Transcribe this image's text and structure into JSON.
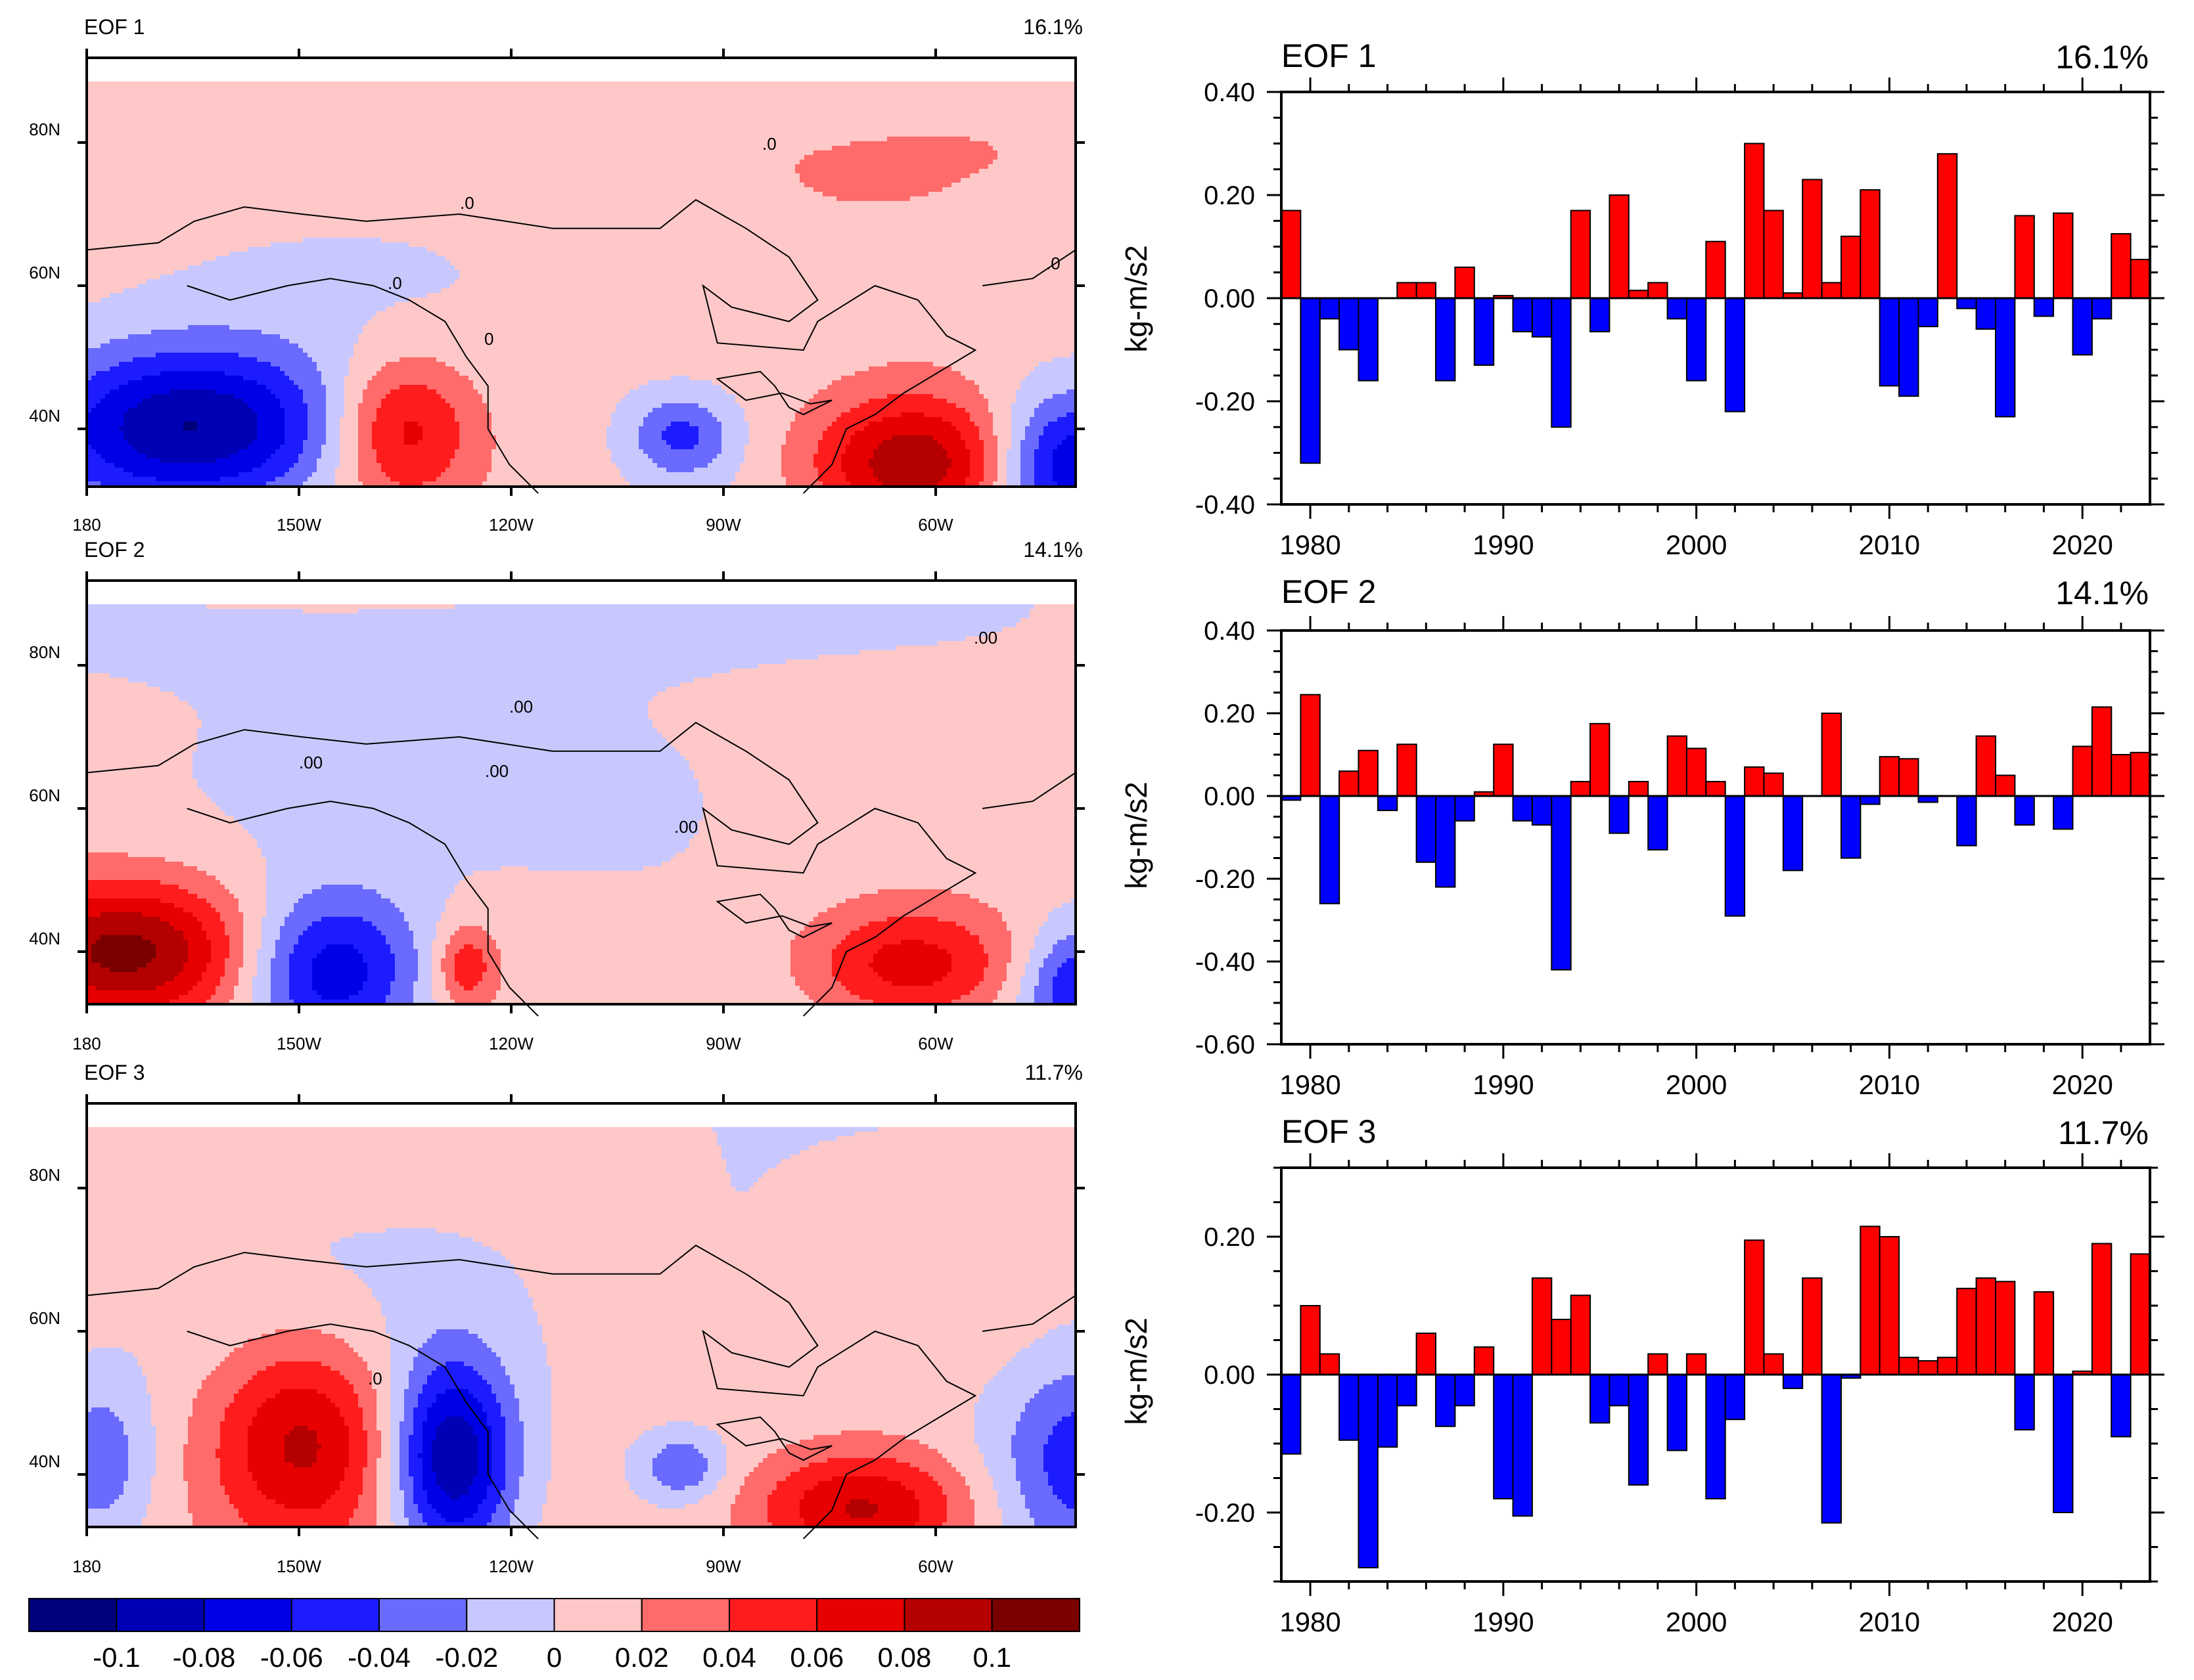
{
  "maps": [
    {
      "title": "EOF 1",
      "variance": "16.1%",
      "lat_ticks": [
        "80N",
        "60N",
        "40N"
      ],
      "lon_ticks": [
        "180",
        "150W",
        "120W",
        "90W",
        "60W"
      ],
      "contour_labels": [
        ".0",
        ".0",
        ".0",
        "0",
        ".0"
      ],
      "blobs": [
        {
          "lon": -165,
          "lat": 40,
          "sx": 15,
          "sy": 8,
          "amp": -0.11
        },
        {
          "lon": -136,
          "lat": 40,
          "sx": 7,
          "sy": 7,
          "amp": 0.065
        },
        {
          "lon": -97,
          "lat": 39,
          "sx": 5,
          "sy": 4,
          "amp": -0.05
        },
        {
          "lon": -64,
          "lat": 35,
          "sx": 11,
          "sy": 7,
          "amp": 0.1
        },
        {
          "lon": -43,
          "lat": 35,
          "sx": 8,
          "sy": 7,
          "amp": -0.09
        },
        {
          "lon": -152,
          "lat": 80,
          "sx": 45,
          "sy": 9,
          "amp": 0.012
        },
        {
          "lon": -55,
          "lat": 82,
          "sx": 30,
          "sy": 8,
          "amp": 0.012
        }
      ]
    },
    {
      "title": "EOF 2",
      "variance": "14.1%",
      "lat_ticks": [
        "80N",
        "60N",
        "40N"
      ],
      "lon_ticks": [
        "180",
        "150W",
        "120W",
        "90W",
        "60W"
      ],
      "contour_labels": [
        ".00",
        ".00",
        ".00",
        ".00",
        ".00"
      ],
      "blobs": [
        {
          "lon": -175,
          "lat": 40,
          "sx": 13,
          "sy": 7,
          "amp": 0.1
        },
        {
          "lon": -146,
          "lat": 37,
          "sx": 9,
          "sy": 8,
          "amp": -0.09
        },
        {
          "lon": -127,
          "lat": 38,
          "sx": 3,
          "sy": 4,
          "amp": 0.05
        },
        {
          "lon": -65,
          "lat": 38,
          "sx": 11,
          "sy": 6,
          "amp": 0.07
        },
        {
          "lon": -41,
          "lat": 35,
          "sx": 6,
          "sy": 6,
          "amp": -0.07
        },
        {
          "lon": -140,
          "lat": 85,
          "sx": 60,
          "sy": 6,
          "amp": -0.012
        },
        {
          "lon": -100,
          "lat": 62,
          "sx": 18,
          "sy": 10,
          "amp": -0.012
        }
      ]
    },
    {
      "title": "EOF 3",
      "variance": "11.7%",
      "lat_ticks": [
        "80N",
        "60N",
        "40N"
      ],
      "lon_ticks": [
        "180",
        "150W",
        "120W",
        "90W",
        "60W"
      ],
      "contour_labels": [
        ".0"
      ],
      "blobs": [
        {
          "lon": -150,
          "lat": 45,
          "sx": 9,
          "sy": 10,
          "amp": 0.075
        },
        {
          "lon": -129,
          "lat": 42,
          "sx": 6,
          "sy": 10,
          "amp": -0.11
        },
        {
          "lon": -97,
          "lat": 41,
          "sx": 4,
          "sy": 3,
          "amp": -0.045
        },
        {
          "lon": -72,
          "lat": 35,
          "sx": 11,
          "sy": 6,
          "amp": 0.085
        },
        {
          "lon": -40,
          "lat": 42,
          "sx": 9,
          "sy": 10,
          "amp": -0.06
        },
        {
          "lon": -178,
          "lat": 42,
          "sx": 5,
          "sy": 8,
          "amp": -0.04
        },
        {
          "lon": -88,
          "lat": 68,
          "sx": 10,
          "sy": 12,
          "amp": -0.012
        }
      ]
    }
  ],
  "colorbar": {
    "colors": [
      "#00007a",
      "#0000b4",
      "#0000e6",
      "#1c1cff",
      "#6a6aff",
      "#c8c8ff",
      "#ffc8c8",
      "#ff6a6a",
      "#ff1c1c",
      "#e60000",
      "#b40000",
      "#7a0000"
    ],
    "levels": [
      -0.1,
      -0.08,
      -0.06,
      -0.04,
      -0.02,
      0,
      0.02,
      0.04,
      0.06,
      0.08,
      0.1
    ],
    "labels": [
      "-0.1",
      "-0.08",
      "-0.06",
      "-0.04",
      "-0.02",
      "0",
      "0.02",
      "0.04",
      "0.06",
      "0.08",
      "0.1"
    ]
  },
  "chart_data": [
    {
      "type": "bar",
      "title": "EOF 1",
      "variance": "16.1%",
      "ylabel": "kg-m/s2",
      "ylim": [
        -0.4,
        0.4
      ],
      "yticks": [
        0.4,
        0.2,
        0.0,
        -0.2,
        -0.4
      ],
      "ytick_labels": [
        "0.40",
        "0.20",
        "0.00",
        "-0.20",
        "-0.40"
      ],
      "xlim": [
        1978.5,
        2023.5
      ],
      "xticks": [
        1980,
        1990,
        2000,
        2010,
        2020
      ],
      "xtick_labels": [
        "1980",
        "1990",
        "2000",
        "2010",
        "2020"
      ],
      "positive_color": "#ff0000",
      "negative_color": "#0000ff",
      "years": [
        1979,
        1980,
        1981,
        1982,
        1983,
        1984,
        1985,
        1986,
        1987,
        1988,
        1989,
        1990,
        1991,
        1992,
        1993,
        1994,
        1995,
        1996,
        1997,
        1998,
        1999,
        2000,
        2001,
        2002,
        2003,
        2004,
        2005,
        2006,
        2007,
        2008,
        2009,
        2010,
        2011,
        2012,
        2013,
        2014,
        2015,
        2016,
        2017,
        2018,
        2019,
        2020,
        2021,
        2022,
        2023
      ],
      "values": [
        0.17,
        -0.32,
        -0.04,
        -0.1,
        -0.16,
        0.0,
        0.03,
        0.03,
        -0.16,
        0.06,
        -0.13,
        0.005,
        -0.065,
        -0.075,
        -0.25,
        0.17,
        -0.065,
        0.2,
        0.015,
        0.03,
        -0.04,
        -0.16,
        0.11,
        -0.22,
        0.3,
        0.17,
        0.01,
        0.23,
        0.03,
        0.12,
        0.21,
        -0.17,
        -0.19,
        -0.055,
        0.28,
        -0.02,
        -0.06,
        -0.23,
        0.16,
        -0.035,
        0.165,
        -0.11,
        -0.04,
        0.125,
        0.075
      ]
    },
    {
      "type": "bar",
      "title": "EOF 2",
      "variance": "14.1%",
      "ylabel": "kg-m/s2",
      "ylim": [
        -0.6,
        0.4
      ],
      "yticks": [
        0.4,
        0.2,
        0.0,
        -0.2,
        -0.4,
        -0.6
      ],
      "ytick_labels": [
        "0.40",
        "0.20",
        "0.00",
        "-0.20",
        "-0.40",
        "-0.60"
      ],
      "xlim": [
        1978.5,
        2023.5
      ],
      "xticks": [
        1980,
        1990,
        2000,
        2010,
        2020
      ],
      "xtick_labels": [
        "1980",
        "1990",
        "2000",
        "2010",
        "2020"
      ],
      "positive_color": "#ff0000",
      "negative_color": "#0000ff",
      "years": [
        1979,
        1980,
        1981,
        1982,
        1983,
        1984,
        1985,
        1986,
        1987,
        1988,
        1989,
        1990,
        1991,
        1992,
        1993,
        1994,
        1995,
        1996,
        1997,
        1998,
        1999,
        2000,
        2001,
        2002,
        2003,
        2004,
        2005,
        2006,
        2007,
        2008,
        2009,
        2010,
        2011,
        2012,
        2013,
        2014,
        2015,
        2016,
        2017,
        2018,
        2019,
        2020,
        2021,
        2022,
        2023
      ],
      "values": [
        -0.01,
        0.245,
        -0.26,
        0.06,
        0.11,
        -0.035,
        0.125,
        -0.16,
        -0.22,
        -0.06,
        0.01,
        0.125,
        -0.06,
        -0.07,
        -0.42,
        0.035,
        0.175,
        -0.09,
        0.035,
        -0.13,
        0.145,
        0.115,
        0.035,
        -0.29,
        0.07,
        0.055,
        -0.18,
        0.0,
        0.2,
        -0.15,
        -0.02,
        0.095,
        0.09,
        -0.015,
        0.0,
        -0.12,
        0.145,
        0.05,
        -0.07,
        0.0,
        -0.08,
        0.12,
        0.215,
        0.1,
        0.105
      ]
    },
    {
      "type": "bar",
      "title": "EOF 3",
      "variance": "11.7%",
      "ylabel": "kg-m/s2",
      "ylim": [
        -0.3,
        0.3
      ],
      "yticks": [
        0.2,
        0.0,
        -0.2
      ],
      "ytick_labels": [
        "0.20",
        "0.00",
        "-0.20"
      ],
      "xlim": [
        1978.5,
        2023.5
      ],
      "xticks": [
        1980,
        1990,
        2000,
        2010,
        2020
      ],
      "xtick_labels": [
        "1980",
        "1990",
        "2000",
        "2010",
        "2020"
      ],
      "positive_color": "#ff0000",
      "negative_color": "#0000ff",
      "years": [
        1979,
        1980,
        1981,
        1982,
        1983,
        1984,
        1985,
        1986,
        1987,
        1988,
        1989,
        1990,
        1991,
        1992,
        1993,
        1994,
        1995,
        1996,
        1997,
        1998,
        1999,
        2000,
        2001,
        2002,
        2003,
        2004,
        2005,
        2006,
        2007,
        2008,
        2009,
        2010,
        2011,
        2012,
        2013,
        2014,
        2015,
        2016,
        2017,
        2018,
        2019,
        2020,
        2021,
        2022,
        2023
      ],
      "values": [
        -0.115,
        0.1,
        0.03,
        -0.095,
        -0.28,
        -0.105,
        -0.045,
        0.06,
        -0.075,
        -0.045,
        0.04,
        -0.18,
        -0.205,
        0.14,
        0.08,
        0.115,
        -0.07,
        -0.045,
        -0.16,
        0.03,
        -0.11,
        0.03,
        -0.18,
        -0.065,
        0.195,
        0.03,
        -0.02,
        0.14,
        -0.215,
        -0.005,
        0.215,
        0.2,
        0.025,
        0.02,
        0.025,
        0.125,
        0.14,
        0.135,
        -0.08,
        0.12,
        -0.2,
        0.005,
        0.19,
        -0.09,
        0.175
      ]
    }
  ]
}
